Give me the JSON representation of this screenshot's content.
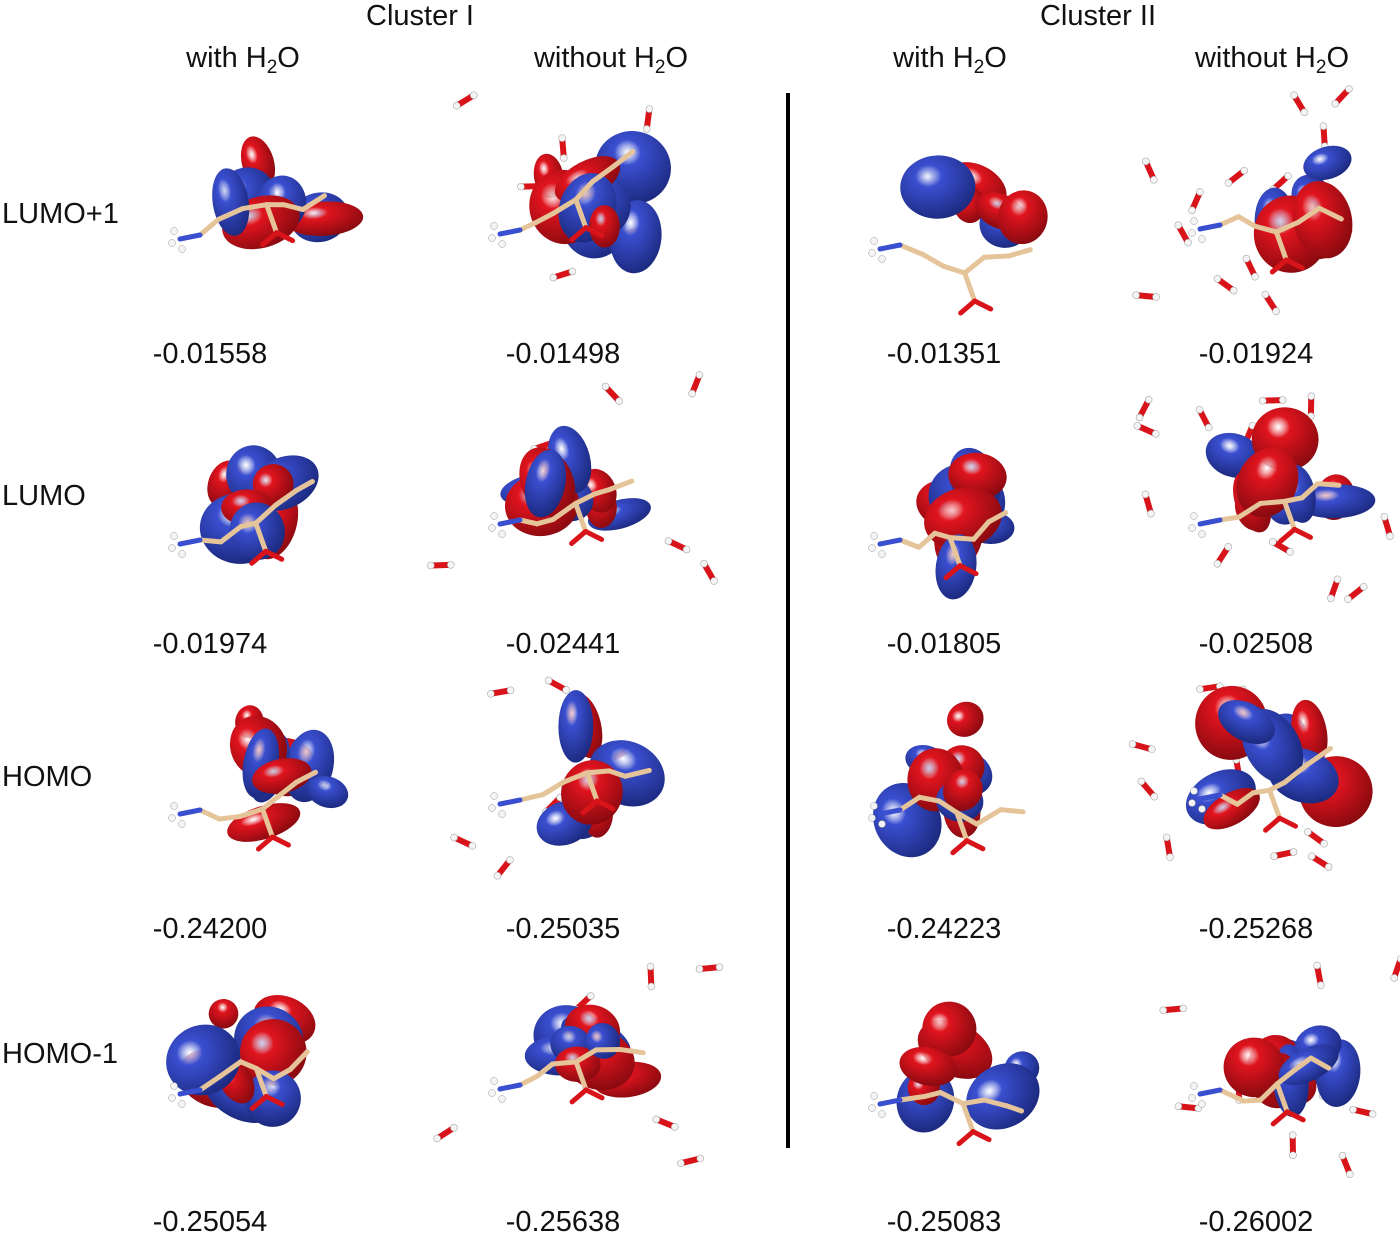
{
  "clusters": [
    {
      "title": "Cluster I",
      "columns": [
        {
          "label_pre": "with H",
          "label_sub": "2",
          "label_post": "O"
        },
        {
          "label_pre": "without H",
          "label_sub": "2",
          "label_post": "O"
        }
      ]
    },
    {
      "title": "Cluster II",
      "columns": [
        {
          "label_pre": "with H",
          "label_sub": "2",
          "label_post": "O"
        },
        {
          "label_pre": "without H",
          "label_sub": "2",
          "label_post": "O"
        }
      ]
    }
  ],
  "rows": [
    {
      "label": "LUMO+1",
      "energies": [
        "-0.01558",
        "-0.01498",
        "-0.01351",
        "-0.01924"
      ]
    },
    {
      "label": "LUMO",
      "energies": [
        "-0.01974",
        "-0.02441",
        "-0.01805",
        "-0.02508"
      ]
    },
    {
      "label": "HOMO",
      "energies": [
        "-0.24200",
        "-0.25035",
        "-0.24223",
        "-0.25268"
      ]
    },
    {
      "label": "HOMO-1",
      "energies": [
        "-0.25054",
        "-0.25638",
        "-0.25083",
        "-0.26002"
      ]
    }
  ],
  "colors": {
    "positive_lobe": "#e0141e",
    "negative_lobe": "#3a4fd0",
    "carbon_bond": "#e6c49a",
    "oxygen": "#d8141a",
    "nitrogen": "#3a4fd0",
    "hydrogen": "#f4f4f4"
  }
}
